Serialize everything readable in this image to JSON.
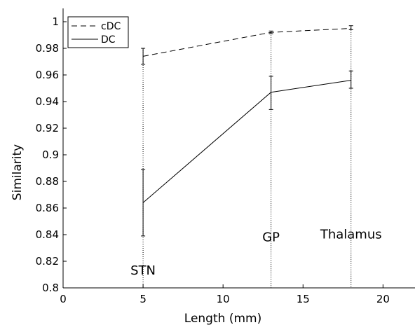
{
  "chart_data": {
    "type": "line",
    "title": "",
    "xlabel": "Length (mm)",
    "ylabel": "Similarity",
    "xlim": [
      0,
      22
    ],
    "ylim": [
      0.8,
      1.01
    ],
    "xticks": [
      0,
      5,
      10,
      15,
      20
    ],
    "yticks": [
      0.8,
      0.82,
      0.84,
      0.86,
      0.88,
      0.9,
      0.92,
      0.94,
      0.96,
      0.98,
      1
    ],
    "ytick_labels": [
      "0.8",
      "0.82",
      "0.84",
      "0.86",
      "0.88",
      "0.9",
      "0.92",
      "0.94",
      "0.96",
      "0.98",
      "1"
    ],
    "xtick_labels": [
      "0",
      "5",
      "10",
      "15",
      "20"
    ],
    "grid": false,
    "legend_position": "top-left",
    "series": [
      {
        "name": "cDC",
        "line_style": "dashed",
        "color": "#000000",
        "x": [
          5,
          13,
          18
        ],
        "y": [
          0.974,
          0.992,
          0.995
        ],
        "err_low": [
          0.968,
          0.991,
          0.994
        ],
        "err_high": [
          0.98,
          0.993,
          0.997
        ]
      },
      {
        "name": "DC",
        "line_style": "solid",
        "color": "#000000",
        "x": [
          5,
          13,
          18
        ],
        "y": [
          0.864,
          0.947,
          0.956
        ],
        "err_low": [
          0.839,
          0.934,
          0.95
        ],
        "err_high": [
          0.889,
          0.959,
          0.963
        ]
      }
    ],
    "annotations": [
      {
        "label": "STN",
        "x": 5,
        "y": 0.81
      },
      {
        "label": "GP",
        "x": 13,
        "y": 0.835
      },
      {
        "label": "Thalamus",
        "x": 18,
        "y": 0.837
      }
    ]
  }
}
